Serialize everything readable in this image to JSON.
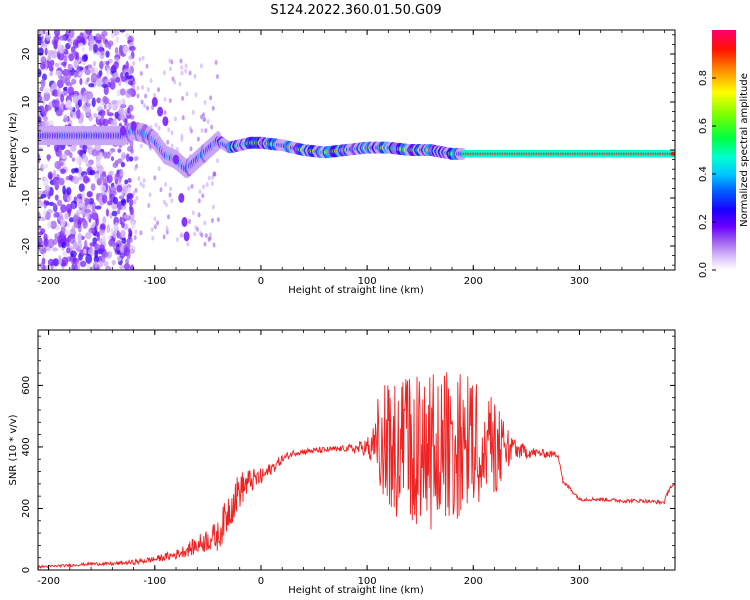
{
  "title": "S124.2022.360.01.50.G09",
  "chart_data": [
    {
      "type": "heatmap",
      "title": "S124.2022.360.01.50.G09",
      "xlabel": "Height of straight line (km)",
      "ylabel": "Frequency (Hz)",
      "xlim": [
        -210,
        390
      ],
      "ylim": [
        -25,
        25
      ],
      "x_ticks": [
        -200,
        -100,
        0,
        100,
        200,
        300
      ],
      "y_ticks": [
        -20,
        -10,
        0,
        10,
        20
      ],
      "colorbar": {
        "label": "Normalized spectral amplitude",
        "range": [
          0,
          1
        ],
        "ticks": [
          0.0,
          0.2,
          0.4,
          0.6,
          0.8
        ],
        "colors": [
          "#ffffff",
          "#c9a6f5",
          "#8a2be2",
          "#3a00ff",
          "#0000ff",
          "#00bfff",
          "#00ffff",
          "#00ff7f",
          "#00ff00",
          "#7fff00",
          "#ffff00",
          "#ff8000",
          "#ff0000",
          "#ff0066"
        ]
      },
      "ridge": {
        "x": [
          -130,
          -120,
          -110,
          -100,
          -90,
          -80,
          -70,
          -60,
          -50,
          -40,
          -30,
          -20,
          -10,
          0,
          20,
          40,
          60,
          80,
          100,
          120,
          140,
          160,
          180,
          200,
          240,
          280,
          320,
          360,
          390
        ],
        "y": [
          3,
          4,
          3.5,
          2,
          -1,
          -2,
          -4,
          -2,
          0,
          2,
          0.5,
          1,
          1.5,
          1.5,
          1,
          0,
          -0.5,
          0,
          0.5,
          0.5,
          0,
          0,
          -0.8,
          -0.8,
          -0.8,
          -0.8,
          -0.8,
          -0.8,
          -0.8
        ]
      }
    },
    {
      "type": "line",
      "xlabel": "Height of straight line (km)",
      "ylabel": "SNR (10 * v/v)",
      "xlim": [
        -210,
        390
      ],
      "ylim": [
        0,
        780
      ],
      "x_ticks": [
        -200,
        -100,
        0,
        100,
        200,
        300
      ],
      "y_ticks": [
        0,
        200,
        400,
        600
      ],
      "color": "#ee2222",
      "series": [
        {
          "x": [
            -210,
            -180,
            -160,
            -140,
            -120,
            -100,
            -80,
            -60,
            -50,
            -40,
            -30,
            -20,
            -10,
            0,
            10,
            20,
            30,
            40,
            60,
            80,
            90,
            100,
            110,
            120,
            140,
            160,
            180,
            200,
            220,
            240,
            260,
            280,
            285,
            290,
            300,
            320,
            340,
            360,
            375,
            380,
            385,
            390
          ],
          "y": [
            10,
            15,
            20,
            20,
            25,
            35,
            50,
            80,
            100,
            110,
            200,
            260,
            290,
            300,
            330,
            360,
            380,
            385,
            390,
            395,
            395,
            400,
            410,
            400,
            400,
            400,
            400,
            400,
            400,
            390,
            380,
            375,
            280,
            270,
            230,
            230,
            225,
            225,
            220,
            220,
            270,
            270
          ],
          "noise_amp": [
            4,
            4,
            5,
            5,
            8,
            10,
            15,
            30,
            40,
            50,
            70,
            60,
            40,
            30,
            20,
            15,
            10,
            10,
            10,
            10,
            20,
            30,
            150,
            200,
            230,
            250,
            230,
            210,
            160,
            30,
            15,
            10,
            10,
            8,
            6,
            6,
            6,
            6,
            6,
            6,
            10,
            10
          ]
        }
      ]
    }
  ]
}
